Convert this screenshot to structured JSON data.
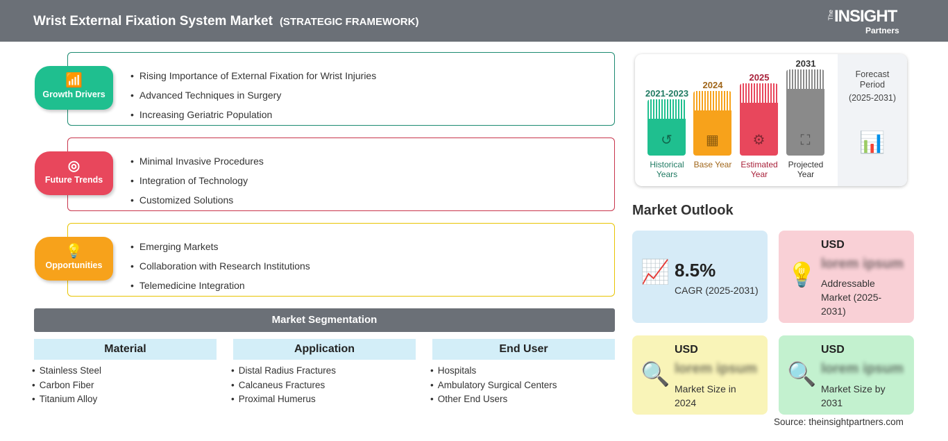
{
  "header": {
    "title": "Wrist External Fixation System Market",
    "subtitle": "(STRATEGIC FRAMEWORK)",
    "logo_the": "The",
    "logo_main": "INSIGHT",
    "logo_sub": "Partners"
  },
  "framework": [
    {
      "label": "Growth Drivers",
      "icon": "growth-chart-icon",
      "color": "#1fbf8f",
      "items": [
        "Rising Importance of External Fixation for Wrist Injuries",
        "Advanced Techniques in Surgery",
        "Increasing Geriatric Population"
      ]
    },
    {
      "label": "Future Trends",
      "icon": "target-icon",
      "color": "#e8475c",
      "items": [
        "Minimal Invasive Procedures",
        "Integration of Technology",
        "Customized Solutions"
      ]
    },
    {
      "label": "Opportunities",
      "icon": "lightbulb-hand-icon",
      "color": "#f7a21b",
      "items": [
        "Emerging Markets",
        "Collaboration with Research Institutions",
        "Telemedicine Integration"
      ]
    }
  ],
  "segmentation": {
    "title": "Market Segmentation",
    "columns": [
      {
        "header": "Material",
        "items": [
          "Stainless Steel",
          "Carbon Fiber",
          "Titanium Alloy"
        ]
      },
      {
        "header": "Application",
        "items": [
          "Distal Radius Fractures",
          "Calcaneus Fractures",
          "Proximal Humerus"
        ]
      },
      {
        "header": "End User",
        "items": [
          "Hospitals",
          "Ambulatory Surgical Centers",
          "Other End Users"
        ]
      }
    ]
  },
  "timeline": {
    "bars": [
      {
        "year": "2021-2023",
        "label": "Historical Years",
        "color": "#1fbf8f",
        "text_color": "#1f7a62",
        "icon": "history-clock-icon"
      },
      {
        "year": "2024",
        "label": "Base Year",
        "color": "#f7a21b",
        "text_color": "#a0661a",
        "icon": "calendar-icon"
      },
      {
        "year": "2025",
        "label": "Estimated Year",
        "color": "#e8475c",
        "text_color": "#a8213a",
        "icon": "monitor-gear-icon"
      },
      {
        "year": "2031",
        "label": "Projected Year",
        "color": "#8a8a8a",
        "text_color": "#333333",
        "icon": "presentation-icon"
      }
    ],
    "forecast_title": "Forecast Period",
    "forecast_range": "(2025-2031)"
  },
  "outlook": {
    "title": "Market Outlook",
    "cards": [
      {
        "value": "8.5%",
        "label": "CAGR (2025-2031)",
        "color": "#d6ebf7",
        "icon": "growth-chart-icon"
      },
      {
        "usd": "USD",
        "blurred": "lorem ipsum",
        "label": "Addressable Market (2025-2031)",
        "color": "#f9d0d6",
        "icon": "dollar-bulb-icon"
      },
      {
        "usd": "USD",
        "blurred": "lorem ipsum",
        "label": "Market Size in 2024",
        "color": "#f9f4b8",
        "icon": "magnifier-chart-icon"
      },
      {
        "usd": "USD",
        "blurred": "lorem ipsum",
        "label": "Market Size by 2031",
        "color": "#c3f1cf",
        "icon": "magnifier-chart-icon"
      }
    ]
  },
  "source": "Source: theinsightpartners.com"
}
